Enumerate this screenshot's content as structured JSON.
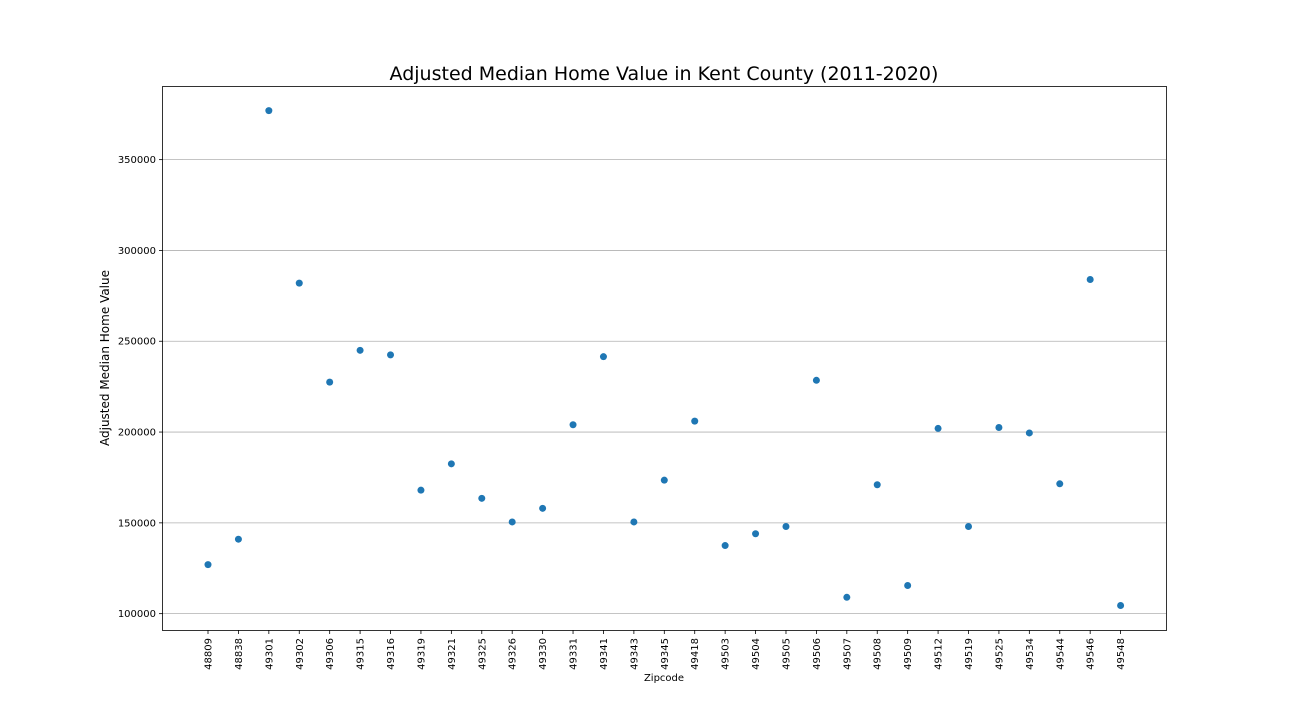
{
  "chart_data": {
    "type": "scatter",
    "title": "Adjusted Median Home Value in Kent County (2011-2020)",
    "xlabel": "Zipcode",
    "ylabel": "Adjusted Median Home Value",
    "ylim": [
      91000,
      390000
    ],
    "yticks": [
      "100000",
      "150000",
      "200000",
      "250000",
      "300000",
      "350000"
    ],
    "grid": "horizontal",
    "marker_color": "#1f77b4",
    "categories": [
      "48809",
      "48838",
      "49301",
      "49302",
      "49306",
      "49315",
      "49316",
      "49319",
      "49321",
      "49325",
      "49326",
      "49330",
      "49331",
      "49341",
      "49343",
      "49345",
      "49418",
      "49503",
      "49504",
      "49505",
      "49506",
      "49507",
      "49508",
      "49509",
      "49512",
      "49519",
      "49525",
      "49534",
      "49544",
      "49546",
      "49548"
    ],
    "values": [
      127000,
      141000,
      377000,
      282000,
      227500,
      245000,
      242500,
      168000,
      182500,
      163500,
      150500,
      158000,
      204000,
      241500,
      150500,
      173500,
      206000,
      137500,
      144000,
      148000,
      228500,
      109000,
      171000,
      115500,
      202000,
      148000,
      202500,
      199500,
      171500,
      284000,
      104500
    ]
  }
}
